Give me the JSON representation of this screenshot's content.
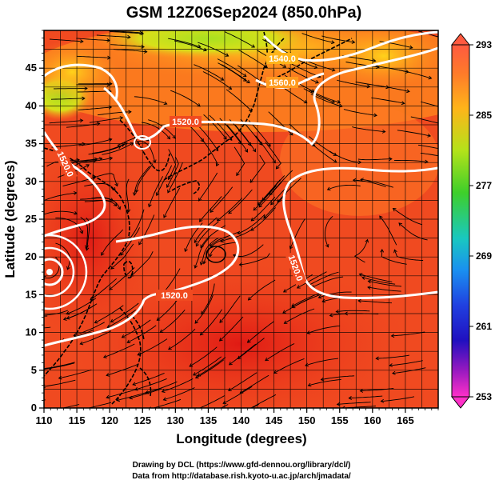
{
  "title": "GSM 12Z06Sep2024 (850.0hPa)",
  "x_axis": {
    "label": "Longitude (degrees)",
    "ticks": [
      "110",
      "115",
      "120",
      "125",
      "130",
      "135",
      "140",
      "145",
      "150",
      "155",
      "160",
      "165"
    ]
  },
  "y_axis": {
    "label": "Latitude  (degrees)",
    "ticks": [
      "0",
      "5",
      "10",
      "15",
      "20",
      "25",
      "30",
      "35",
      "40",
      "45"
    ]
  },
  "colorbar": {
    "ticks": [
      "293",
      "285",
      "277",
      "269",
      "261",
      "253"
    ],
    "colors": [
      "#ff5a40",
      "#ff8a2a",
      "#ffc21a",
      "#b4e21a",
      "#3ecf2a",
      "#19c8a0",
      "#1aa0e8",
      "#2060e0",
      "#2010c0",
      "#6018b8",
      "#c020c0",
      "#ff30c8"
    ]
  },
  "contour_labels": [
    "1520.0",
    "1520.0",
    "1520.0",
    "1520.0",
    "1540.0",
    "1560.0"
  ],
  "credits": {
    "line1": "Drawing by DCL (https://www.gfd-dennou.org/library/dcl/)",
    "line2": "Data from http://database.rish.kyoto-u.ac.jp/arch/jmadata/"
  },
  "map": {
    "lon_range": [
      110,
      170
    ],
    "lat_range": [
      0,
      50
    ],
    "field": "850 hPa temperature (K) with geopotential height contours and streamlines",
    "colors": {
      "warm": "#f04a20",
      "hot": "#e8281a",
      "orange": "#ff8a1e",
      "yellow": "#ffd21a",
      "green": "#9ee21e",
      "contour": "#ffffff",
      "streamline": "#000000",
      "grid": "#000000"
    }
  }
}
